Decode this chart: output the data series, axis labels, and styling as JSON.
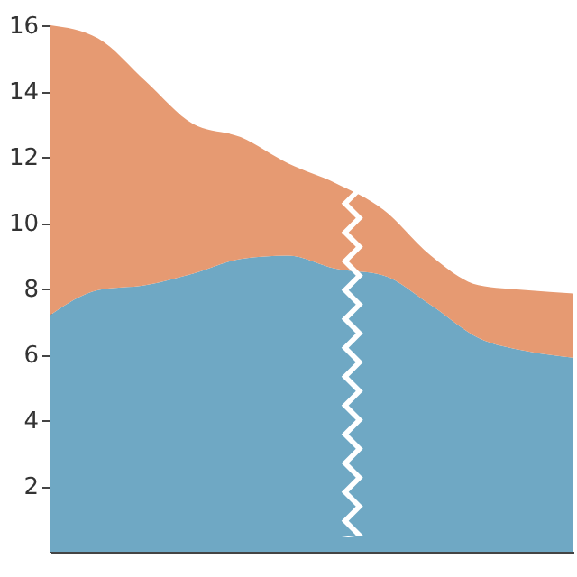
{
  "chart_data": {
    "type": "area",
    "stacked": true,
    "categories": [
      null,
      null,
      null,
      null,
      null,
      null,
      null,
      null,
      null,
      null,
      null,
      null
    ],
    "series": [
      {
        "color": "#6fa8c4",
        "values": [
          7.2,
          7.95,
          8.1,
          8.45,
          8.9,
          9.0,
          8.6,
          8.4,
          7.5,
          6.5,
          6.1,
          5.9
        ]
      },
      {
        "color": "#e69a72",
        "values": [
          8.8,
          7.65,
          6.2,
          4.55,
          3.7,
          2.8,
          2.6,
          2.0,
          1.5,
          1.6,
          1.85,
          1.95
        ]
      }
    ],
    "ylim": [
      0,
      16
    ],
    "yticks": [
      2,
      4,
      6,
      8,
      10,
      12,
      14,
      16
    ],
    "grid": false,
    "legend": false
  }
}
